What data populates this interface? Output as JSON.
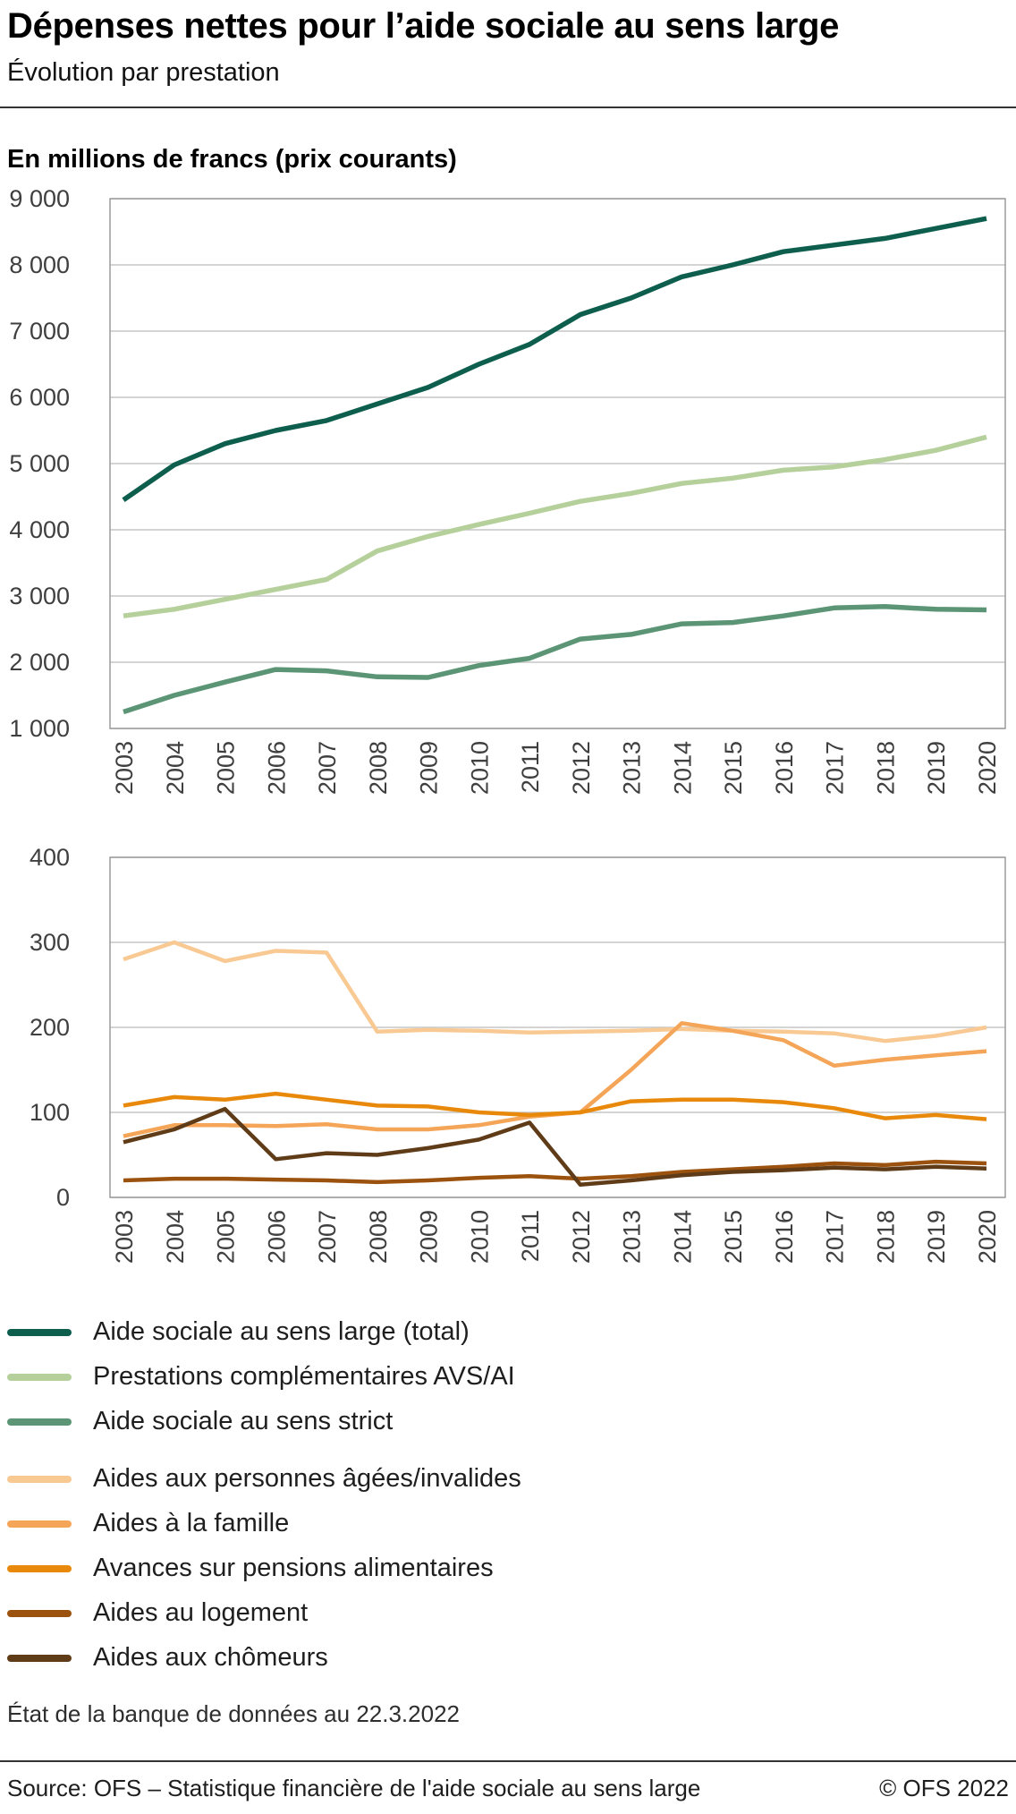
{
  "header": {
    "title": "Dépenses nettes pour l’aide sociale au sens large",
    "subtitle": "Évolution par prestation"
  },
  "section": {
    "axis_title": "En millions de francs (prix courants)"
  },
  "chart_data": [
    {
      "type": "line",
      "title": "En millions de francs (prix courants)",
      "x": [
        "2003",
        "2004",
        "2005",
        "2006",
        "2007",
        "2008",
        "2009",
        "2010",
        "2011",
        "2012",
        "2013",
        "2014",
        "2015",
        "2016",
        "2017",
        "2018",
        "2019",
        "2020"
      ],
      "ylim": [
        1000,
        9000
      ],
      "ytick_step": 1000,
      "ytick_labels": [
        "1 000",
        "2 000",
        "3 000",
        "4 000",
        "5 000",
        "6 000",
        "7 000",
        "8 000",
        "9 000"
      ],
      "grid": true,
      "legend_position": "below",
      "series": [
        {
          "name": "Aide sociale au sens large (total)",
          "color": "#0e5e4e",
          "values": [
            4450,
            4980,
            5300,
            5500,
            5650,
            5900,
            6150,
            6500,
            6800,
            7250,
            7500,
            7820,
            8000,
            8200,
            8300,
            8400,
            8550,
            8700
          ]
        },
        {
          "name": "Prestations complémentaires AVS/AI",
          "color": "#b5d09b",
          "values": [
            2700,
            2800,
            2950,
            3100,
            3250,
            3680,
            3900,
            4080,
            4250,
            4430,
            4550,
            4700,
            4780,
            4900,
            4950,
            5060,
            5200,
            5400
          ]
        },
        {
          "name": "Aide sociale au sens strict",
          "color": "#5b9575",
          "values": [
            1250,
            1500,
            1700,
            1890,
            1870,
            1780,
            1770,
            1950,
            2060,
            2350,
            2420,
            2580,
            2600,
            2700,
            2820,
            2840,
            2800,
            2790
          ]
        }
      ]
    },
    {
      "type": "line",
      "title": "",
      "x": [
        "2003",
        "2004",
        "2005",
        "2006",
        "2007",
        "2008",
        "2009",
        "2010",
        "2011",
        "2012",
        "2013",
        "2014",
        "2015",
        "2016",
        "2017",
        "2018",
        "2019",
        "2020"
      ],
      "ylim": [
        0,
        400
      ],
      "ytick_step": 100,
      "ytick_labels": [
        "0",
        "100",
        "200",
        "300",
        "400"
      ],
      "grid": true,
      "legend_position": "below",
      "series": [
        {
          "name": "Aides aux personnes âgées/invalides",
          "color": "#f9c993",
          "values": [
            280,
            300,
            278,
            290,
            288,
            195,
            197,
            196,
            194,
            195,
            196,
            198,
            196,
            195,
            193,
            184,
            190,
            200
          ]
        },
        {
          "name": "Aides à la famille",
          "color": "#f4a558",
          "values": [
            72,
            85,
            85,
            84,
            86,
            80,
            80,
            85,
            95,
            100,
            150,
            205,
            196,
            185,
            155,
            162,
            167,
            172
          ]
        },
        {
          "name": "Avances sur pensions alimentaires",
          "color": "#e8890c",
          "values": [
            108,
            118,
            115,
            122,
            115,
            108,
            107,
            100,
            97,
            100,
            113,
            115,
            115,
            112,
            105,
            93,
            97,
            92
          ]
        },
        {
          "name": "Aides au logement",
          "color": "#9b520e",
          "values": [
            20,
            22,
            22,
            21,
            20,
            18,
            20,
            23,
            25,
            22,
            25,
            30,
            33,
            36,
            40,
            38,
            42,
            40
          ]
        },
        {
          "name": "Aides aux chômeurs",
          "color": "#5f3c17",
          "values": [
            65,
            80,
            104,
            45,
            52,
            50,
            58,
            68,
            88,
            15,
            20,
            26,
            30,
            32,
            35,
            33,
            36,
            34
          ]
        }
      ]
    }
  ],
  "footnote": "État de la banque de données au 22.3.2022",
  "footer": {
    "source": "Source: OFS – Statistique financière de l'aide sociale au sens large",
    "copyright": "© OFS 2022"
  },
  "colors": {
    "grid": "#c6c6c6",
    "frame": "#9c9c9c",
    "divider": "#333333"
  }
}
